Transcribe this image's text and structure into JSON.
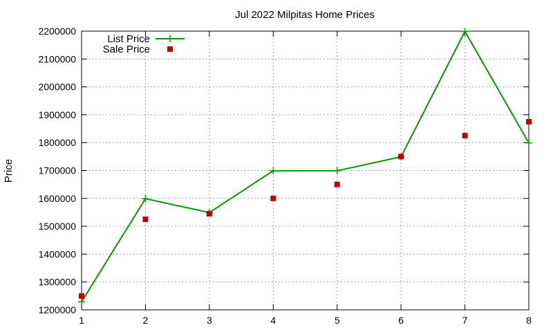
{
  "chart_data": {
    "type": "line",
    "title": "Jul 2022 Milpitas Home Prices",
    "xlabel": "",
    "ylabel": "Price",
    "x": [
      1,
      2,
      3,
      4,
      5,
      6,
      7,
      8
    ],
    "xlim": [
      1,
      8
    ],
    "ylim": [
      1200000,
      2200000
    ],
    "yticks": [
      1200000,
      1300000,
      1400000,
      1500000,
      1600000,
      1700000,
      1800000,
      1900000,
      2000000,
      2100000,
      2200000
    ],
    "xticks": [
      1,
      2,
      3,
      4,
      5,
      6,
      7,
      8
    ],
    "grid": true,
    "legend_position": "top-left",
    "series": [
      {
        "name": "List Price",
        "style": "line-with-plus-markers",
        "color": "#009900",
        "values": [
          1229000,
          1599000,
          1549000,
          1699000,
          1699000,
          1749000,
          2199000,
          1799000
        ]
      },
      {
        "name": "Sale Price",
        "style": "square-markers",
        "color": "#c00000",
        "values": [
          1250000,
          1525000,
          1545000,
          1600000,
          1650000,
          1750000,
          1825000,
          1875000
        ]
      }
    ]
  }
}
